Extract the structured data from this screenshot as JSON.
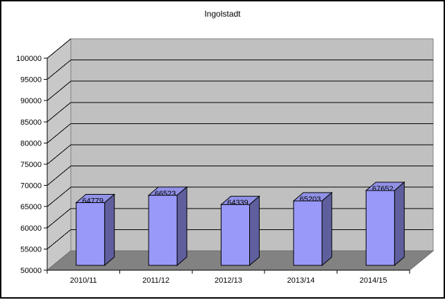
{
  "chart_data": {
    "type": "bar",
    "variant": "3d-column",
    "title": "Ingolstadt",
    "categories": [
      "2010/11",
      "2011/12",
      "2012/13",
      "2013/14",
      "2014/15"
    ],
    "values": [
      64779,
      66523,
      64339,
      65203,
      67652
    ],
    "data_labels": [
      "64779",
      "66523",
      "64339",
      "65203",
      "67652"
    ],
    "xlabel": "",
    "ylabel": "",
    "ylim": [
      50000,
      100000
    ],
    "ytick_step": 5000,
    "ytick_labels": [
      "50000",
      "55000",
      "60000",
      "65000",
      "70000",
      "75000",
      "80000",
      "85000",
      "90000",
      "95000",
      "100000"
    ],
    "grid": true,
    "legend": "none",
    "colors": {
      "bar_front": "#9999FA",
      "bar_top": "#9191E6",
      "bar_side": "#5F5F9E",
      "bar_outline": "#000000",
      "back_wall": "#C0C0C0",
      "left_wall": "#C8C8C8",
      "floor": "#828282",
      "wall_outline": "#808080",
      "gridline": "#000000",
      "axis": "#000000",
      "background": "#FFFFFF",
      "text": "#000000"
    }
  }
}
